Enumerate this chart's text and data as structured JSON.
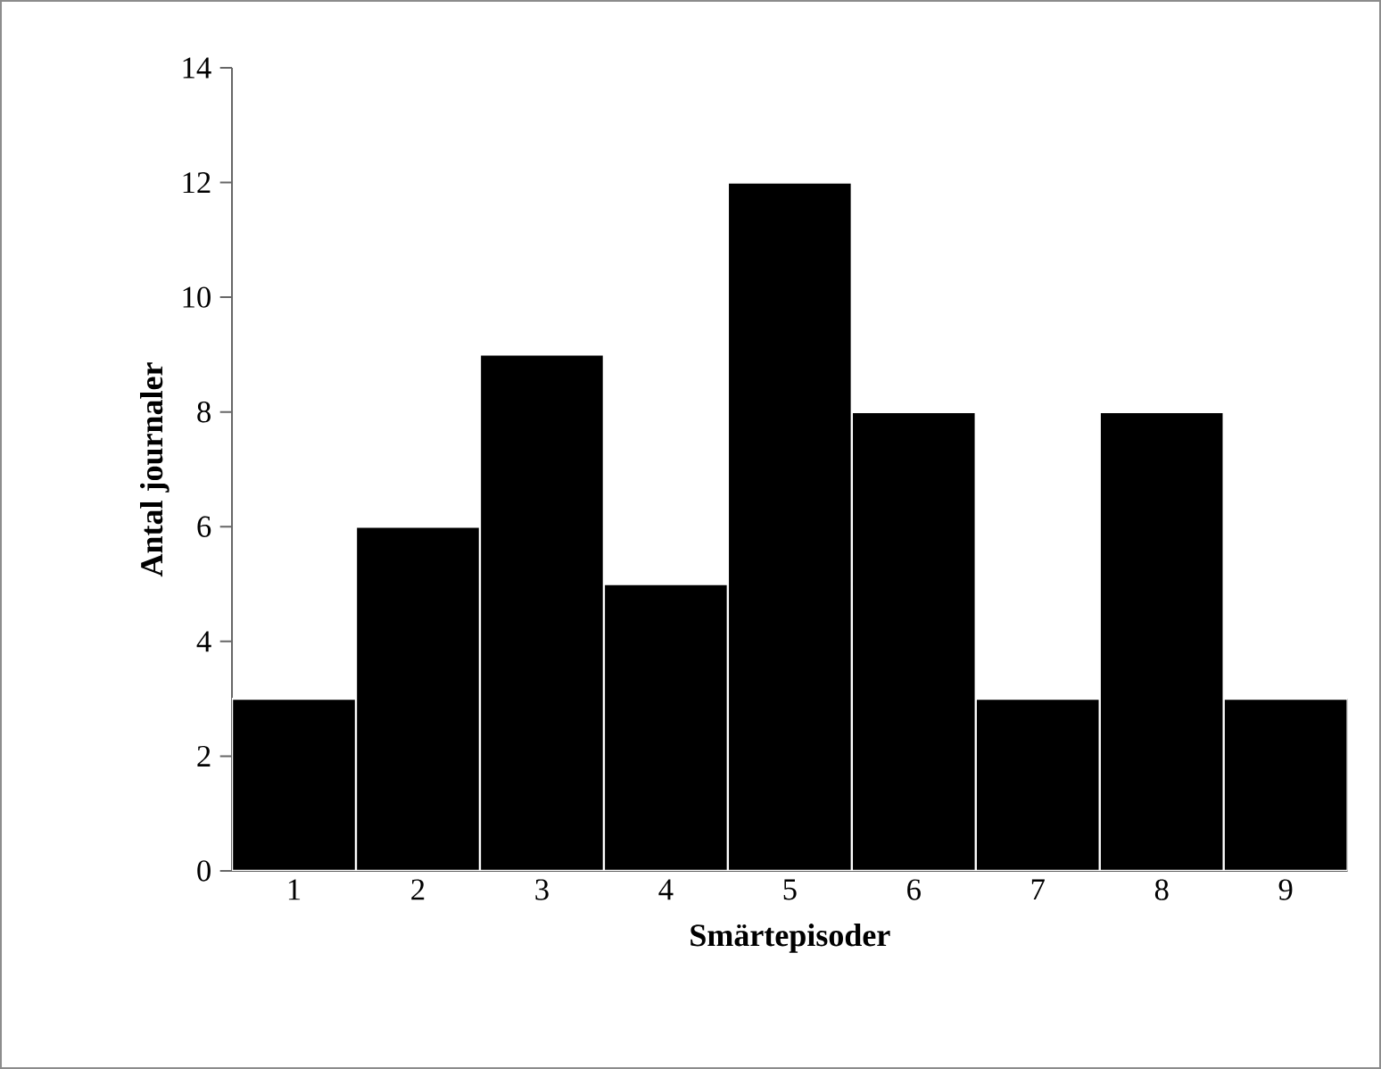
{
  "chart_data": {
    "type": "bar",
    "xlabel": "Smärtepisoder",
    "ylabel": "Antal journaler",
    "categories": [
      "1",
      "2",
      "3",
      "4",
      "5",
      "6",
      "7",
      "8",
      "9"
    ],
    "values": [
      3,
      6,
      9,
      5,
      12,
      8,
      3,
      8,
      3
    ],
    "color": "#000000",
    "ylim": [
      0,
      14
    ],
    "yticks": [
      0,
      2,
      4,
      6,
      8,
      10,
      12,
      14
    ]
  }
}
